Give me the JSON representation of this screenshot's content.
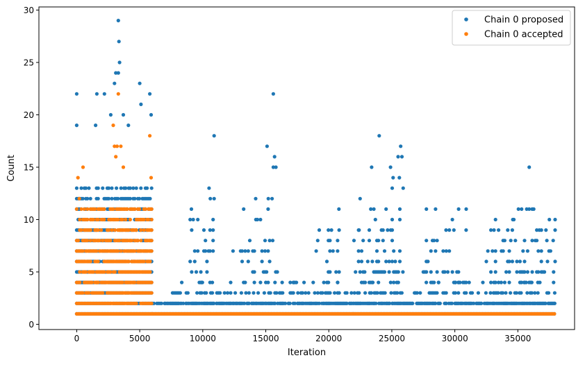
{
  "chart_data": {
    "type": "scatter",
    "title": "",
    "xlabel": "Iteration",
    "ylabel": "Count",
    "xlim": [
      -3000,
      39500
    ],
    "ylim": [
      -0.5,
      30.3
    ],
    "x_ticks": [
      0,
      5000,
      10000,
      15000,
      20000,
      25000,
      30000,
      35000
    ],
    "y_ticks": [
      0,
      5,
      10,
      15,
      20,
      25,
      30
    ],
    "x_tick_labels": [
      "0",
      "5000",
      "10000",
      "15000",
      "20000",
      "25000",
      "30000",
      "35000"
    ],
    "y_tick_labels": [
      "0",
      "5",
      "10",
      "15",
      "20",
      "25",
      "30"
    ],
    "grid": false,
    "legend_position": "upper right",
    "series": [
      {
        "name": "Chain 0 proposed",
        "color": "#1f77b4",
        "segments": [
          {
            "x_range": [
              0,
              6000
            ],
            "y_min": 1,
            "y_max": 13,
            "band": "dense"
          },
          {
            "x_range": [
              6000,
              38000
            ],
            "y_min": 1,
            "y_max": 2,
            "band": "dense"
          },
          {
            "x_range": [
              7000,
              38000
            ],
            "y_min": 2,
            "y_max": 4,
            "band": "moderate"
          },
          {
            "x_range": [
              9000,
              11000
            ],
            "y_min": 4,
            "y_max": 11,
            "band": "sparse"
          },
          {
            "x_range": [
              13000,
              16000
            ],
            "y_min": 4,
            "y_max": 12,
            "band": "sparse"
          },
          {
            "x_range": [
              19000,
              21000
            ],
            "y_min": 4,
            "y_max": 9,
            "band": "sparse"
          },
          {
            "x_range": [
              22000,
              26000
            ],
            "y_min": 4,
            "y_max": 13,
            "band": "sparse"
          },
          {
            "x_range": [
              27500,
              31000
            ],
            "y_min": 4,
            "y_max": 11,
            "band": "sparse"
          },
          {
            "x_range": [
              32500,
              38000
            ],
            "y_min": 4,
            "y_max": 11,
            "band": "sparse"
          }
        ],
        "points": [
          [
            0,
            22
          ],
          [
            1600,
            22
          ],
          [
            2200,
            22
          ],
          [
            3300,
            29
          ],
          [
            3350,
            27
          ],
          [
            3400,
            25
          ],
          [
            3100,
            24
          ],
          [
            3300,
            24
          ],
          [
            3000,
            23
          ],
          [
            5000,
            23
          ],
          [
            5800,
            22
          ],
          [
            5100,
            21
          ],
          [
            2700,
            20
          ],
          [
            3700,
            20
          ],
          [
            5900,
            20
          ],
          [
            0,
            19
          ],
          [
            1500,
            19
          ],
          [
            4100,
            19
          ],
          [
            10900,
            18
          ],
          [
            15600,
            22
          ],
          [
            15100,
            17
          ],
          [
            15700,
            16
          ],
          [
            15600,
            15
          ],
          [
            15800,
            15
          ],
          [
            24000,
            18
          ],
          [
            25700,
            17
          ],
          [
            25500,
            16
          ],
          [
            25800,
            16
          ],
          [
            23400,
            15
          ],
          [
            24900,
            15
          ],
          [
            25100,
            14
          ],
          [
            25600,
            14
          ],
          [
            25900,
            13
          ],
          [
            10500,
            13
          ],
          [
            14200,
            12
          ],
          [
            15200,
            12
          ],
          [
            15500,
            12
          ],
          [
            10600,
            12
          ],
          [
            10900,
            12
          ],
          [
            35900,
            15
          ],
          [
            35300,
            11
          ],
          [
            35700,
            11
          ],
          [
            35900,
            11
          ],
          [
            30300,
            11
          ],
          [
            30900,
            11
          ],
          [
            20800,
            11
          ],
          [
            22400,
            9
          ],
          [
            12400,
            7
          ],
          [
            9100,
            11
          ],
          [
            29300,
            9
          ],
          [
            33700,
            7
          ],
          [
            37500,
            10
          ],
          [
            34600,
            10
          ],
          [
            36700,
            9
          ],
          [
            37300,
            8
          ],
          [
            37800,
            8
          ],
          [
            16300,
            4
          ],
          [
            17200,
            4
          ],
          [
            17800,
            3
          ],
          [
            26800,
            3
          ]
        ]
      },
      {
        "name": "Chain 0 accepted",
        "color": "#ff7f0e",
        "segments": [
          {
            "x_range": [
              0,
              6000
            ],
            "y_min": 1,
            "y_max": 11,
            "band": "dense"
          },
          {
            "x_range": [
              6000,
              38000
            ],
            "y_min": 1,
            "y_max": 1,
            "band": "dense"
          }
        ],
        "points": [
          [
            3300,
            22
          ],
          [
            2900,
            19
          ],
          [
            3000,
            17
          ],
          [
            3200,
            17
          ],
          [
            3500,
            17
          ],
          [
            3100,
            16
          ],
          [
            3700,
            15
          ],
          [
            100,
            14
          ],
          [
            500,
            15
          ],
          [
            5800,
            18
          ],
          [
            200,
            12
          ],
          [
            5900,
            14
          ]
        ]
      }
    ]
  }
}
